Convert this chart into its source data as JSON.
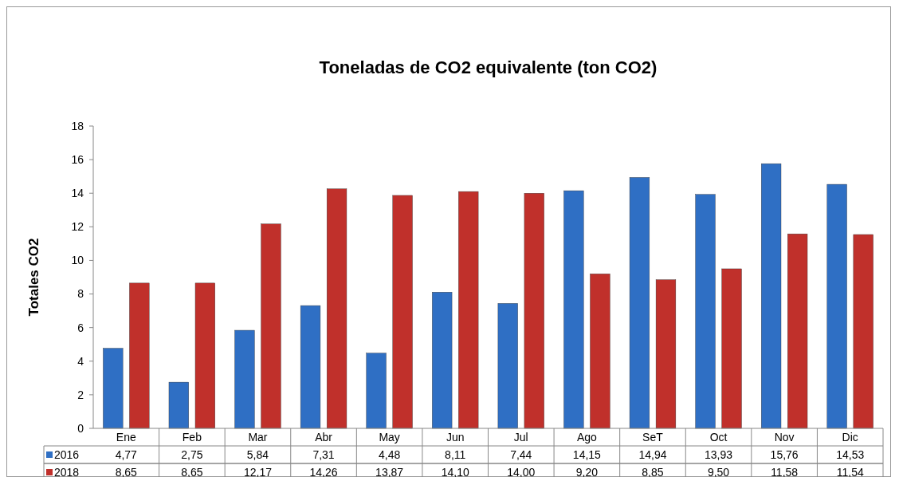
{
  "chart_data": {
    "type": "bar",
    "title": "Toneladas de CO2 equivalente (ton CO2)",
    "ylabel": "Totales CO2",
    "categories": [
      "Ene",
      "Feb",
      "Mar",
      "Abr",
      "May",
      "Jun",
      "Jul",
      "Ago",
      "SeT",
      "Oct",
      "Nov",
      "Dic"
    ],
    "series": [
      {
        "name": "2016",
        "color": "#2f6fc4",
        "values": [
          4.77,
          2.75,
          5.84,
          7.31,
          4.48,
          8.11,
          7.44,
          14.15,
          14.94,
          13.93,
          15.76,
          14.53
        ],
        "value_labels": [
          "4,77",
          "2,75",
          "5,84",
          "7,31",
          "4,48",
          "8,11",
          "7,44",
          "14,15",
          "14,94",
          "13,93",
          "15,76",
          "14,53"
        ]
      },
      {
        "name": "2018",
        "color": "#c0302b",
        "values": [
          8.65,
          8.65,
          12.17,
          14.26,
          13.87,
          14.1,
          14.0,
          9.2,
          8.85,
          9.5,
          11.58,
          11.54
        ],
        "value_labels": [
          "8,65",
          "8,65",
          "12,17",
          "14,26",
          "13,87",
          "14,10",
          "14,00",
          "9,20",
          "8,85",
          "9,50",
          "11,58",
          "11,54"
        ]
      }
    ],
    "ylim": [
      0,
      18
    ],
    "yticks": [
      0,
      2,
      4,
      6,
      8,
      10,
      12,
      14,
      16,
      18
    ],
    "legend": "bottom"
  }
}
